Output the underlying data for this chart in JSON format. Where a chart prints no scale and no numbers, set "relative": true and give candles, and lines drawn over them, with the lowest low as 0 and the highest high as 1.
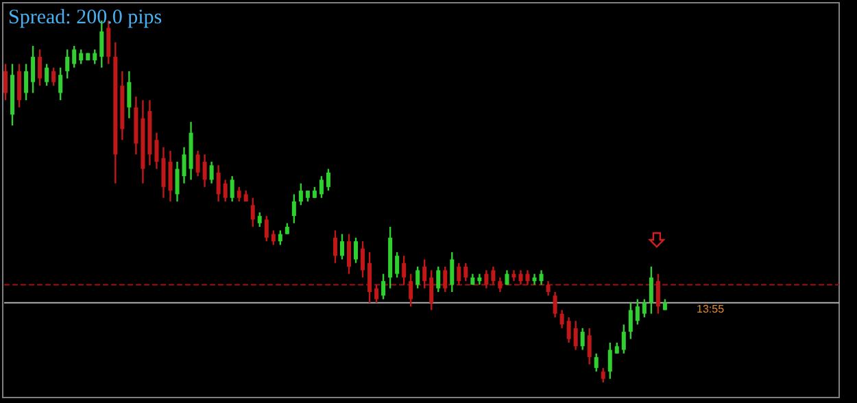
{
  "chart_data": {
    "type": "candlestick",
    "title": "Spread: 200.0 pips",
    "relative": true,
    "categories": [
      null,
      null,
      null,
      null,
      null,
      null,
      null,
      null,
      null,
      null,
      null,
      null,
      null,
      null,
      null,
      null,
      null,
      null,
      null,
      null,
      null,
      null,
      null,
      null,
      null,
      null,
      null,
      null,
      null,
      null,
      null,
      null,
      null,
      null,
      null,
      null,
      null,
      null,
      null,
      null,
      null,
      null,
      null,
      null,
      null,
      null,
      null,
      null,
      null,
      null,
      null,
      null,
      null,
      null,
      null,
      null,
      null,
      null,
      null,
      null,
      null,
      null,
      null,
      null,
      null,
      null,
      null,
      null,
      null,
      null,
      null,
      null,
      null,
      null,
      null,
      null,
      null,
      null,
      null,
      null,
      null,
      null,
      null,
      null,
      null,
      null,
      null,
      null,
      null,
      null,
      null,
      null,
      null,
      null,
      null,
      null,
      null
    ],
    "ohlc": [
      [
        0.86,
        0.88,
        0.78,
        0.8
      ],
      [
        0.74,
        0.88,
        0.71,
        0.85
      ],
      [
        0.86,
        0.88,
        0.76,
        0.78
      ],
      [
        0.8,
        0.88,
        0.78,
        0.86
      ],
      [
        0.83,
        0.93,
        0.8,
        0.9
      ],
      [
        0.9,
        0.92,
        0.82,
        0.84
      ],
      [
        0.83,
        0.88,
        0.82,
        0.87
      ],
      [
        0.86,
        0.87,
        0.82,
        0.83
      ],
      [
        0.8,
        0.87,
        0.78,
        0.85
      ],
      [
        0.86,
        0.92,
        0.84,
        0.9
      ],
      [
        0.88,
        0.93,
        0.87,
        0.92
      ],
      [
        0.89,
        0.92,
        0.88,
        0.91
      ],
      [
        0.89,
        0.91,
        0.89,
        0.91
      ],
      [
        0.89,
        0.92,
        0.88,
        0.91
      ],
      [
        0.9,
        1.0,
        0.87,
        0.97
      ],
      [
        0.98,
        1.0,
        0.88,
        0.9
      ],
      [
        0.9,
        0.94,
        0.55,
        0.63
      ],
      [
        0.82,
        0.86,
        0.67,
        0.7
      ],
      [
        0.76,
        0.86,
        0.73,
        0.83
      ],
      [
        0.76,
        0.79,
        0.63,
        0.66
      ],
      [
        0.73,
        0.78,
        0.55,
        0.59
      ],
      [
        0.75,
        0.78,
        0.6,
        0.63
      ],
      [
        0.67,
        0.69,
        0.59,
        0.61
      ],
      [
        0.62,
        0.65,
        0.51,
        0.54
      ],
      [
        0.61,
        0.64,
        0.5,
        0.53
      ],
      [
        0.52,
        0.61,
        0.5,
        0.59
      ],
      [
        0.57,
        0.65,
        0.55,
        0.63
      ],
      [
        0.59,
        0.72,
        0.56,
        0.69
      ],
      [
        0.63,
        0.64,
        0.57,
        0.58
      ],
      [
        0.61,
        0.63,
        0.54,
        0.56
      ],
      [
        0.56,
        0.61,
        0.55,
        0.6
      ],
      [
        0.58,
        0.6,
        0.5,
        0.52
      ],
      [
        0.55,
        0.56,
        0.5,
        0.51
      ],
      [
        0.51,
        0.57,
        0.5,
        0.56
      ],
      [
        0.53,
        0.54,
        0.5,
        0.51
      ],
      [
        0.52,
        0.53,
        0.5,
        0.5
      ],
      [
        0.49,
        0.51,
        0.43,
        0.45
      ],
      [
        0.44,
        0.47,
        0.43,
        0.46
      ],
      [
        0.45,
        0.46,
        0.39,
        0.4
      ],
      [
        0.41,
        0.42,
        0.38,
        0.39
      ],
      [
        0.39,
        0.42,
        0.38,
        0.41
      ],
      [
        0.41,
        0.44,
        0.41,
        0.43
      ],
      [
        0.46,
        0.52,
        0.44,
        0.5
      ],
      [
        0.5,
        0.55,
        0.49,
        0.53
      ],
      [
        0.51,
        0.53,
        0.5,
        0.53
      ],
      [
        0.51,
        0.54,
        0.51,
        0.53
      ],
      [
        0.52,
        0.57,
        0.51,
        0.56
      ],
      [
        0.54,
        0.59,
        0.53,
        0.58
      ],
      [
        0.4,
        0.42,
        0.33,
        0.35
      ],
      [
        0.35,
        0.41,
        0.34,
        0.39
      ],
      [
        0.39,
        0.41,
        0.3,
        0.32
      ],
      [
        0.34,
        0.4,
        0.33,
        0.39
      ],
      [
        0.37,
        0.39,
        0.29,
        0.31
      ],
      [
        0.33,
        0.36,
        0.22,
        0.25
      ],
      [
        0.26,
        0.27,
        0.22,
        0.23
      ],
      [
        0.24,
        0.3,
        0.23,
        0.28
      ],
      [
        0.29,
        0.43,
        0.26,
        0.4
      ],
      [
        0.3,
        0.36,
        0.29,
        0.35
      ],
      [
        0.33,
        0.35,
        0.27,
        0.29
      ],
      [
        0.28,
        0.3,
        0.21,
        0.23
      ],
      [
        0.27,
        0.32,
        0.26,
        0.31
      ],
      [
        0.32,
        0.34,
        0.26,
        0.28
      ],
      [
        0.29,
        0.31,
        0.2,
        0.22
      ],
      [
        0.26,
        0.32,
        0.25,
        0.31
      ],
      [
        0.31,
        0.32,
        0.25,
        0.26
      ],
      [
        0.27,
        0.36,
        0.25,
        0.34
      ],
      [
        0.32,
        0.33,
        0.27,
        0.28
      ],
      [
        0.32,
        0.33,
        0.28,
        0.29
      ],
      [
        0.27,
        0.3,
        0.27,
        0.29
      ],
      [
        0.28,
        0.3,
        0.27,
        0.29
      ],
      [
        0.3,
        0.31,
        0.26,
        0.27
      ],
      [
        0.31,
        0.32,
        0.27,
        0.28
      ],
      [
        0.28,
        0.29,
        0.25,
        0.26
      ],
      [
        0.27,
        0.31,
        0.27,
        0.3
      ],
      [
        0.3,
        0.31,
        0.28,
        0.29
      ],
      [
        0.3,
        0.31,
        0.27,
        0.28
      ],
      [
        0.3,
        0.31,
        0.27,
        0.28
      ],
      [
        0.28,
        0.3,
        0.27,
        0.29
      ],
      [
        0.28,
        0.31,
        0.27,
        0.3
      ],
      [
        0.27,
        0.28,
        0.24,
        0.25
      ],
      [
        0.24,
        0.25,
        0.18,
        0.19
      ],
      [
        0.19,
        0.2,
        0.15,
        0.16
      ],
      [
        0.17,
        0.18,
        0.11,
        0.12
      ],
      [
        0.15,
        0.17,
        0.09,
        0.1
      ],
      [
        0.1,
        0.15,
        0.09,
        0.14
      ],
      [
        0.13,
        0.15,
        0.05,
        0.07
      ],
      [
        0.04,
        0.08,
        0.03,
        0.07
      ],
      [
        0.03,
        0.04,
        0.0,
        0.01
      ],
      [
        0.03,
        0.11,
        0.01,
        0.09
      ],
      [
        0.08,
        0.11,
        0.08,
        0.1
      ],
      [
        0.09,
        0.16,
        0.08,
        0.14
      ],
      [
        0.14,
        0.22,
        0.12,
        0.2
      ],
      [
        0.17,
        0.23,
        0.16,
        0.21
      ],
      [
        0.19,
        0.23,
        0.18,
        0.22
      ],
      [
        0.22,
        0.32,
        0.19,
        0.29
      ],
      [
        0.28,
        0.3,
        0.19,
        0.21
      ],
      [
        0.2,
        0.23,
        0.2,
        0.22
      ]
    ],
    "colors": [
      "#c01818",
      "#2fd02f",
      "#c01818",
      "#2fd02f",
      "#2fd02f",
      "#c01818",
      "#2fd02f",
      "#c01818",
      "#2fd02f",
      "#2fd02f",
      "#2fd02f",
      "#2fd02f",
      "#2fd02f",
      "#2fd02f",
      "#2fd02f",
      "#c01818",
      "#c01818",
      "#c01818",
      "#2fd02f",
      "#c01818",
      "#c01818",
      "#c01818",
      "#c01818",
      "#c01818",
      "#c01818",
      "#2fd02f",
      "#2fd02f",
      "#2fd02f",
      "#c01818",
      "#c01818",
      "#2fd02f",
      "#c01818",
      "#c01818",
      "#2fd02f",
      "#c01818",
      "#c01818",
      "#c01818",
      "#2fd02f",
      "#c01818",
      "#c01818",
      "#2fd02f",
      "#2fd02f",
      "#2fd02f",
      "#2fd02f",
      "#2fd02f",
      "#2fd02f",
      "#2fd02f",
      "#2fd02f",
      "#c01818",
      "#2fd02f",
      "#c01818",
      "#2fd02f",
      "#c01818",
      "#c01818",
      "#c01818",
      "#2fd02f",
      "#2fd02f",
      "#2fd02f",
      "#c01818",
      "#c01818",
      "#2fd02f",
      "#c01818",
      "#c01818",
      "#2fd02f",
      "#c01818",
      "#2fd02f",
      "#c01818",
      "#c01818",
      "#2fd02f",
      "#2fd02f",
      "#c01818",
      "#c01818",
      "#c01818",
      "#2fd02f",
      "#c01818",
      "#c01818",
      "#c01818",
      "#2fd02f",
      "#2fd02f",
      "#c01818",
      "#c01818",
      "#c01818",
      "#c01818",
      "#c01818",
      "#2fd02f",
      "#c01818",
      "#2fd02f",
      "#c01818",
      "#2fd02f",
      "#2fd02f",
      "#2fd02f",
      "#2fd02f",
      "#2fd02f",
      "#2fd02f",
      "#2fd02f",
      "#c01818",
      "#2fd02f"
    ],
    "ref_lines": [
      {
        "axis": "y",
        "value": 0.27,
        "color": "#a01010",
        "line_style": "dashed"
      },
      {
        "axis": "y",
        "value": 0.22,
        "color": "#b0b0b0",
        "line_style": "solid"
      }
    ],
    "annotations": [
      "13:55"
    ]
  }
}
